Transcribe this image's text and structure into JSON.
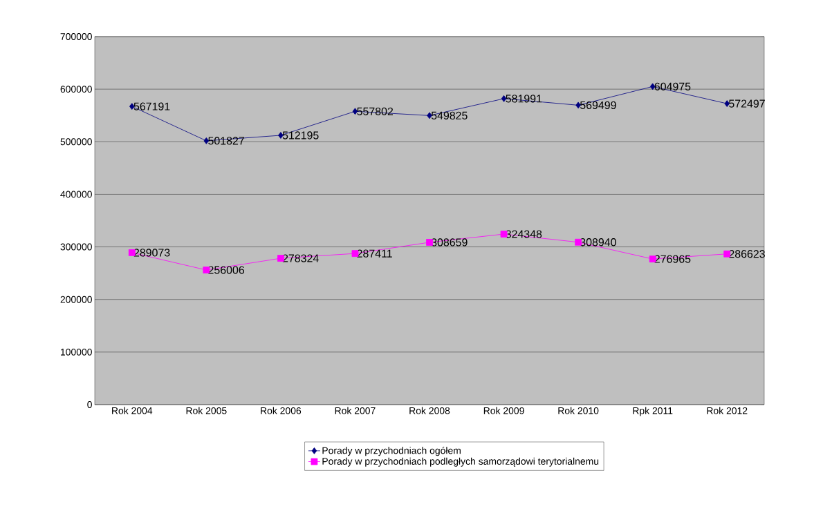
{
  "chart_data": {
    "type": "line",
    "categories": [
      "Rok 2004",
      "Rok 2005",
      "Rok 2006",
      "Rok 2007",
      "Rok 2008",
      "Rok 2009",
      "Rok 2010",
      "Rpk 2011",
      "Rok 2012"
    ],
    "series": [
      {
        "name": "Porady w przychodniach ogółem",
        "color": "#000080",
        "marker": "diamond",
        "values": [
          567191,
          501827,
          512195,
          557802,
          549825,
          581991,
          569499,
          604975,
          572497
        ]
      },
      {
        "name": "Porady w przychodniach podległych samorządowi terytorialnemu",
        "color": "#ff00ff",
        "marker": "square",
        "values": [
          289073,
          256006,
          278324,
          287411,
          308659,
          324348,
          308940,
          276965,
          286623
        ]
      }
    ],
    "ylim": [
      0,
      700000
    ],
    "yticks": [
      0,
      100000,
      200000,
      300000,
      400000,
      500000,
      600000,
      700000
    ],
    "grid": "y",
    "legend": "bottom",
    "data_labels": true,
    "line_style": "solid"
  }
}
